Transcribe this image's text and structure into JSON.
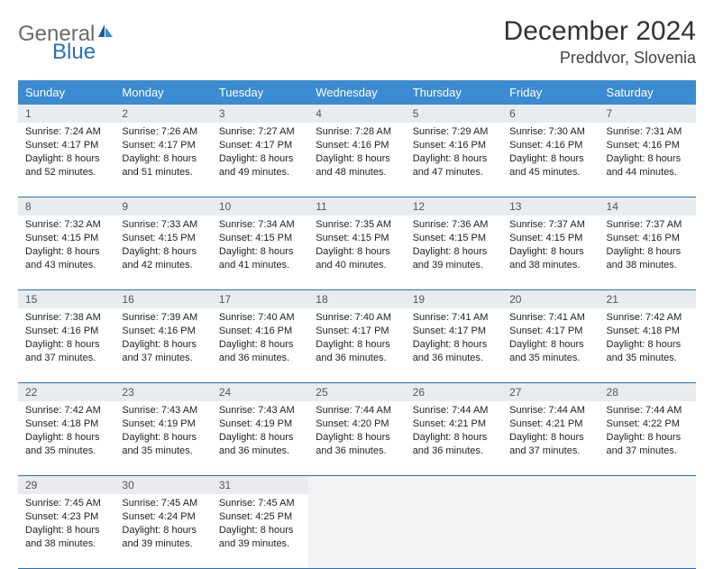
{
  "logo": {
    "part1": "General",
    "part2": "Blue"
  },
  "title": "December 2024",
  "location": "Preddvor, Slovenia",
  "header_bg": "#3b8bd0",
  "rule_color": "#2a6fb5",
  "daynum_bg": "#e9ecef",
  "empty_bg": "#f1f3f5",
  "weekdays": [
    "Sunday",
    "Monday",
    "Tuesday",
    "Wednesday",
    "Thursday",
    "Friday",
    "Saturday"
  ],
  "weeks": [
    [
      {
        "n": "1",
        "sr": "Sunrise: 7:24 AM",
        "ss": "Sunset: 4:17 PM",
        "dl": "Daylight: 8 hours and 52 minutes."
      },
      {
        "n": "2",
        "sr": "Sunrise: 7:26 AM",
        "ss": "Sunset: 4:17 PM",
        "dl": "Daylight: 8 hours and 51 minutes."
      },
      {
        "n": "3",
        "sr": "Sunrise: 7:27 AM",
        "ss": "Sunset: 4:17 PM",
        "dl": "Daylight: 8 hours and 49 minutes."
      },
      {
        "n": "4",
        "sr": "Sunrise: 7:28 AM",
        "ss": "Sunset: 4:16 PM",
        "dl": "Daylight: 8 hours and 48 minutes."
      },
      {
        "n": "5",
        "sr": "Sunrise: 7:29 AM",
        "ss": "Sunset: 4:16 PM",
        "dl": "Daylight: 8 hours and 47 minutes."
      },
      {
        "n": "6",
        "sr": "Sunrise: 7:30 AM",
        "ss": "Sunset: 4:16 PM",
        "dl": "Daylight: 8 hours and 45 minutes."
      },
      {
        "n": "7",
        "sr": "Sunrise: 7:31 AM",
        "ss": "Sunset: 4:16 PM",
        "dl": "Daylight: 8 hours and 44 minutes."
      }
    ],
    [
      {
        "n": "8",
        "sr": "Sunrise: 7:32 AM",
        "ss": "Sunset: 4:15 PM",
        "dl": "Daylight: 8 hours and 43 minutes."
      },
      {
        "n": "9",
        "sr": "Sunrise: 7:33 AM",
        "ss": "Sunset: 4:15 PM",
        "dl": "Daylight: 8 hours and 42 minutes."
      },
      {
        "n": "10",
        "sr": "Sunrise: 7:34 AM",
        "ss": "Sunset: 4:15 PM",
        "dl": "Daylight: 8 hours and 41 minutes."
      },
      {
        "n": "11",
        "sr": "Sunrise: 7:35 AM",
        "ss": "Sunset: 4:15 PM",
        "dl": "Daylight: 8 hours and 40 minutes."
      },
      {
        "n": "12",
        "sr": "Sunrise: 7:36 AM",
        "ss": "Sunset: 4:15 PM",
        "dl": "Daylight: 8 hours and 39 minutes."
      },
      {
        "n": "13",
        "sr": "Sunrise: 7:37 AM",
        "ss": "Sunset: 4:15 PM",
        "dl": "Daylight: 8 hours and 38 minutes."
      },
      {
        "n": "14",
        "sr": "Sunrise: 7:37 AM",
        "ss": "Sunset: 4:16 PM",
        "dl": "Daylight: 8 hours and 38 minutes."
      }
    ],
    [
      {
        "n": "15",
        "sr": "Sunrise: 7:38 AM",
        "ss": "Sunset: 4:16 PM",
        "dl": "Daylight: 8 hours and 37 minutes."
      },
      {
        "n": "16",
        "sr": "Sunrise: 7:39 AM",
        "ss": "Sunset: 4:16 PM",
        "dl": "Daylight: 8 hours and 37 minutes."
      },
      {
        "n": "17",
        "sr": "Sunrise: 7:40 AM",
        "ss": "Sunset: 4:16 PM",
        "dl": "Daylight: 8 hours and 36 minutes."
      },
      {
        "n": "18",
        "sr": "Sunrise: 7:40 AM",
        "ss": "Sunset: 4:17 PM",
        "dl": "Daylight: 8 hours and 36 minutes."
      },
      {
        "n": "19",
        "sr": "Sunrise: 7:41 AM",
        "ss": "Sunset: 4:17 PM",
        "dl": "Daylight: 8 hours and 36 minutes."
      },
      {
        "n": "20",
        "sr": "Sunrise: 7:41 AM",
        "ss": "Sunset: 4:17 PM",
        "dl": "Daylight: 8 hours and 35 minutes."
      },
      {
        "n": "21",
        "sr": "Sunrise: 7:42 AM",
        "ss": "Sunset: 4:18 PM",
        "dl": "Daylight: 8 hours and 35 minutes."
      }
    ],
    [
      {
        "n": "22",
        "sr": "Sunrise: 7:42 AM",
        "ss": "Sunset: 4:18 PM",
        "dl": "Daylight: 8 hours and 35 minutes."
      },
      {
        "n": "23",
        "sr": "Sunrise: 7:43 AM",
        "ss": "Sunset: 4:19 PM",
        "dl": "Daylight: 8 hours and 35 minutes."
      },
      {
        "n": "24",
        "sr": "Sunrise: 7:43 AM",
        "ss": "Sunset: 4:19 PM",
        "dl": "Daylight: 8 hours and 36 minutes."
      },
      {
        "n": "25",
        "sr": "Sunrise: 7:44 AM",
        "ss": "Sunset: 4:20 PM",
        "dl": "Daylight: 8 hours and 36 minutes."
      },
      {
        "n": "26",
        "sr": "Sunrise: 7:44 AM",
        "ss": "Sunset: 4:21 PM",
        "dl": "Daylight: 8 hours and 36 minutes."
      },
      {
        "n": "27",
        "sr": "Sunrise: 7:44 AM",
        "ss": "Sunset: 4:21 PM",
        "dl": "Daylight: 8 hours and 37 minutes."
      },
      {
        "n": "28",
        "sr": "Sunrise: 7:44 AM",
        "ss": "Sunset: 4:22 PM",
        "dl": "Daylight: 8 hours and 37 minutes."
      }
    ],
    [
      {
        "n": "29",
        "sr": "Sunrise: 7:45 AM",
        "ss": "Sunset: 4:23 PM",
        "dl": "Daylight: 8 hours and 38 minutes."
      },
      {
        "n": "30",
        "sr": "Sunrise: 7:45 AM",
        "ss": "Sunset: 4:24 PM",
        "dl": "Daylight: 8 hours and 39 minutes."
      },
      {
        "n": "31",
        "sr": "Sunrise: 7:45 AM",
        "ss": "Sunset: 4:25 PM",
        "dl": "Daylight: 8 hours and 39 minutes."
      },
      null,
      null,
      null,
      null
    ]
  ]
}
